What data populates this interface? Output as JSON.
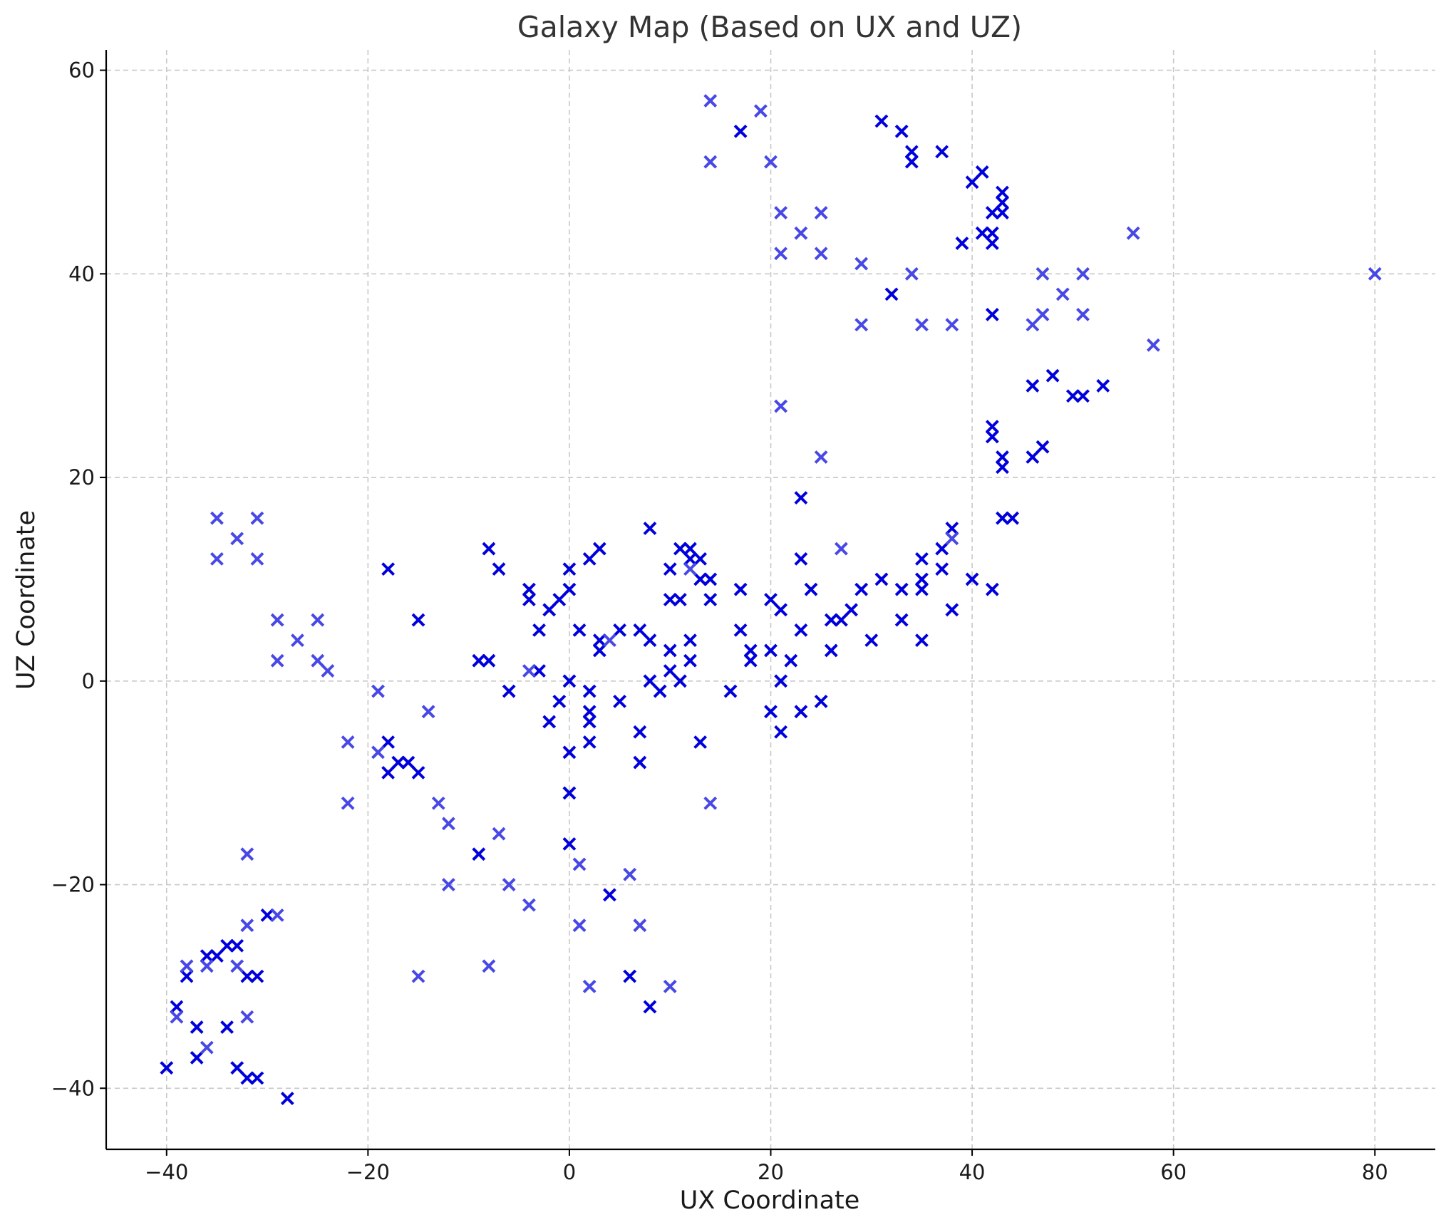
{
  "chart_data": {
    "type": "scatter",
    "title": "Galaxy Map (Based on UX and UZ)",
    "xlabel": "UX Coordinate",
    "ylabel": "UZ Coordinate",
    "xlim": [
      -46,
      86
    ],
    "ylim": [
      -46,
      62
    ],
    "xticks": [
      -40,
      -20,
      0,
      20,
      40,
      60,
      80
    ],
    "yticks": [
      -40,
      -20,
      0,
      20,
      40,
      60
    ],
    "xtick_labels": [
      "−40",
      "−20",
      "0",
      "20",
      "40",
      "60",
      "80"
    ],
    "ytick_labels": [
      "−40",
      "−20",
      "0",
      "20",
      "40",
      "60"
    ],
    "grid": true,
    "marker": "x",
    "colors": {
      "dark": "#0000dd",
      "light": "#4848e6",
      "grid": "#c8c8c8",
      "title": "#333333"
    },
    "series": [
      {
        "shade": "dark",
        "points": [
          [
            -40,
            -38
          ],
          [
            -39,
            -32
          ],
          [
            -38,
            -29
          ],
          [
            -37,
            -34
          ],
          [
            -37,
            -37
          ],
          [
            -36,
            -27
          ],
          [
            -35,
            -27
          ],
          [
            -34,
            -26
          ],
          [
            -34,
            -34
          ],
          [
            -33,
            -26
          ],
          [
            -33,
            -38
          ],
          [
            -32,
            -29
          ],
          [
            -32,
            -39
          ],
          [
            -31,
            -29
          ],
          [
            -31,
            -39
          ],
          [
            -30,
            -23
          ],
          [
            -28,
            -41
          ],
          [
            -18,
            11
          ],
          [
            -18,
            -6
          ],
          [
            -18,
            -9
          ],
          [
            -17,
            -8
          ],
          [
            -16,
            -8
          ],
          [
            -15,
            6
          ],
          [
            -15,
            -9
          ],
          [
            -9,
            -17
          ],
          [
            -9,
            2
          ],
          [
            -8,
            2
          ],
          [
            -8,
            13
          ],
          [
            -7,
            11
          ],
          [
            -6,
            -1
          ],
          [
            -4,
            9
          ],
          [
            -4,
            8
          ],
          [
            -3,
            5
          ],
          [
            -3,
            1
          ],
          [
            -2,
            7
          ],
          [
            -2,
            -4
          ],
          [
            -1,
            8
          ],
          [
            -1,
            -2
          ],
          [
            0,
            9
          ],
          [
            0,
            11
          ],
          [
            0,
            0
          ],
          [
            0,
            -7
          ],
          [
            0,
            -11
          ],
          [
            0,
            -16
          ],
          [
            1,
            5
          ],
          [
            2,
            12
          ],
          [
            2,
            -1
          ],
          [
            2,
            -3
          ],
          [
            2,
            -4
          ],
          [
            2,
            -6
          ],
          [
            3,
            13
          ],
          [
            3,
            4
          ],
          [
            3,
            3
          ],
          [
            4,
            -21
          ],
          [
            5,
            5
          ],
          [
            5,
            -2
          ],
          [
            6,
            -29
          ],
          [
            7,
            5
          ],
          [
            7,
            -5
          ],
          [
            7,
            -8
          ],
          [
            8,
            15
          ],
          [
            8,
            4
          ],
          [
            8,
            0
          ],
          [
            8,
            -32
          ],
          [
            9,
            -1
          ],
          [
            10,
            11
          ],
          [
            10,
            8
          ],
          [
            10,
            3
          ],
          [
            10,
            1
          ],
          [
            11,
            13
          ],
          [
            11,
            8
          ],
          [
            11,
            0
          ],
          [
            12,
            13
          ],
          [
            12,
            12
          ],
          [
            12,
            4
          ],
          [
            12,
            2
          ],
          [
            13,
            12
          ],
          [
            13,
            10
          ],
          [
            13,
            -6
          ],
          [
            14,
            10
          ],
          [
            14,
            8
          ],
          [
            16,
            -1
          ],
          [
            17,
            54
          ],
          [
            17,
            9
          ],
          [
            17,
            5
          ],
          [
            18,
            3
          ],
          [
            18,
            2
          ],
          [
            20,
            8
          ],
          [
            20,
            3
          ],
          [
            20,
            -3
          ],
          [
            21,
            7
          ],
          [
            21,
            0
          ],
          [
            21,
            -5
          ],
          [
            22,
            2
          ],
          [
            23,
            18
          ],
          [
            23,
            12
          ],
          [
            23,
            5
          ],
          [
            23,
            -3
          ],
          [
            24,
            9
          ],
          [
            25,
            -2
          ],
          [
            26,
            6
          ],
          [
            26,
            3
          ],
          [
            27,
            6
          ],
          [
            28,
            7
          ],
          [
            29,
            9
          ],
          [
            30,
            4
          ],
          [
            31,
            55
          ],
          [
            31,
            10
          ],
          [
            32,
            38
          ],
          [
            33,
            54
          ],
          [
            33,
            9
          ],
          [
            33,
            6
          ],
          [
            34,
            52
          ],
          [
            34,
            51
          ],
          [
            35,
            12
          ],
          [
            35,
            10
          ],
          [
            35,
            9
          ],
          [
            35,
            4
          ],
          [
            37,
            52
          ],
          [
            37,
            13
          ],
          [
            37,
            11
          ],
          [
            38,
            15
          ],
          [
            38,
            7
          ],
          [
            39,
            43
          ],
          [
            40,
            49
          ],
          [
            40,
            10
          ],
          [
            41,
            50
          ],
          [
            41,
            44
          ],
          [
            42,
            46
          ],
          [
            42,
            44
          ],
          [
            42,
            43
          ],
          [
            42,
            36
          ],
          [
            42,
            25
          ],
          [
            42,
            24
          ],
          [
            42,
            9
          ],
          [
            43,
            48
          ],
          [
            43,
            47
          ],
          [
            43,
            46
          ],
          [
            43,
            22
          ],
          [
            43,
            21
          ],
          [
            43,
            16
          ],
          [
            44,
            16
          ],
          [
            46,
            29
          ],
          [
            46,
            22
          ],
          [
            47,
            23
          ],
          [
            48,
            30
          ],
          [
            50,
            28
          ],
          [
            51,
            28
          ],
          [
            53,
            29
          ]
        ]
      },
      {
        "shade": "light",
        "points": [
          [
            -39,
            -33
          ],
          [
            -38,
            -28
          ],
          [
            -36,
            -28
          ],
          [
            -36,
            -36
          ],
          [
            -35,
            16
          ],
          [
            -35,
            12
          ],
          [
            -33,
            14
          ],
          [
            -33,
            -28
          ],
          [
            -32,
            -17
          ],
          [
            -32,
            -24
          ],
          [
            -32,
            -33
          ],
          [
            -31,
            16
          ],
          [
            -31,
            12
          ],
          [
            -29,
            6
          ],
          [
            -29,
            2
          ],
          [
            -29,
            -23
          ],
          [
            -27,
            4
          ],
          [
            -25,
            6
          ],
          [
            -25,
            2
          ],
          [
            -24,
            1
          ],
          [
            -22,
            -6
          ],
          [
            -22,
            -12
          ],
          [
            -19,
            -1
          ],
          [
            -19,
            -7
          ],
          [
            -14,
            -3
          ],
          [
            -13,
            -12
          ],
          [
            -12,
            -14
          ],
          [
            -12,
            -20
          ],
          [
            -15,
            -29
          ],
          [
            -8,
            -28
          ],
          [
            -7,
            -15
          ],
          [
            -6,
            -20
          ],
          [
            -4,
            1
          ],
          [
            -4,
            -22
          ],
          [
            1,
            -18
          ],
          [
            1,
            -24
          ],
          [
            2,
            -30
          ],
          [
            4,
            4
          ],
          [
            6,
            -19
          ],
          [
            7,
            -24
          ],
          [
            10,
            -30
          ],
          [
            12,
            11
          ],
          [
            14,
            57
          ],
          [
            14,
            51
          ],
          [
            14,
            -12
          ],
          [
            19,
            56
          ],
          [
            20,
            51
          ],
          [
            21,
            46
          ],
          [
            21,
            42
          ],
          [
            21,
            27
          ],
          [
            23,
            44
          ],
          [
            25,
            46
          ],
          [
            25,
            42
          ],
          [
            25,
            22
          ],
          [
            27,
            13
          ],
          [
            29,
            41
          ],
          [
            29,
            35
          ],
          [
            34,
            40
          ],
          [
            35,
            35
          ],
          [
            38,
            35
          ],
          [
            38,
            14
          ],
          [
            46,
            35
          ],
          [
            47,
            40
          ],
          [
            47,
            36
          ],
          [
            49,
            38
          ],
          [
            51,
            40
          ],
          [
            51,
            36
          ],
          [
            56,
            44
          ],
          [
            58,
            33
          ],
          [
            80,
            40
          ]
        ]
      }
    ]
  }
}
